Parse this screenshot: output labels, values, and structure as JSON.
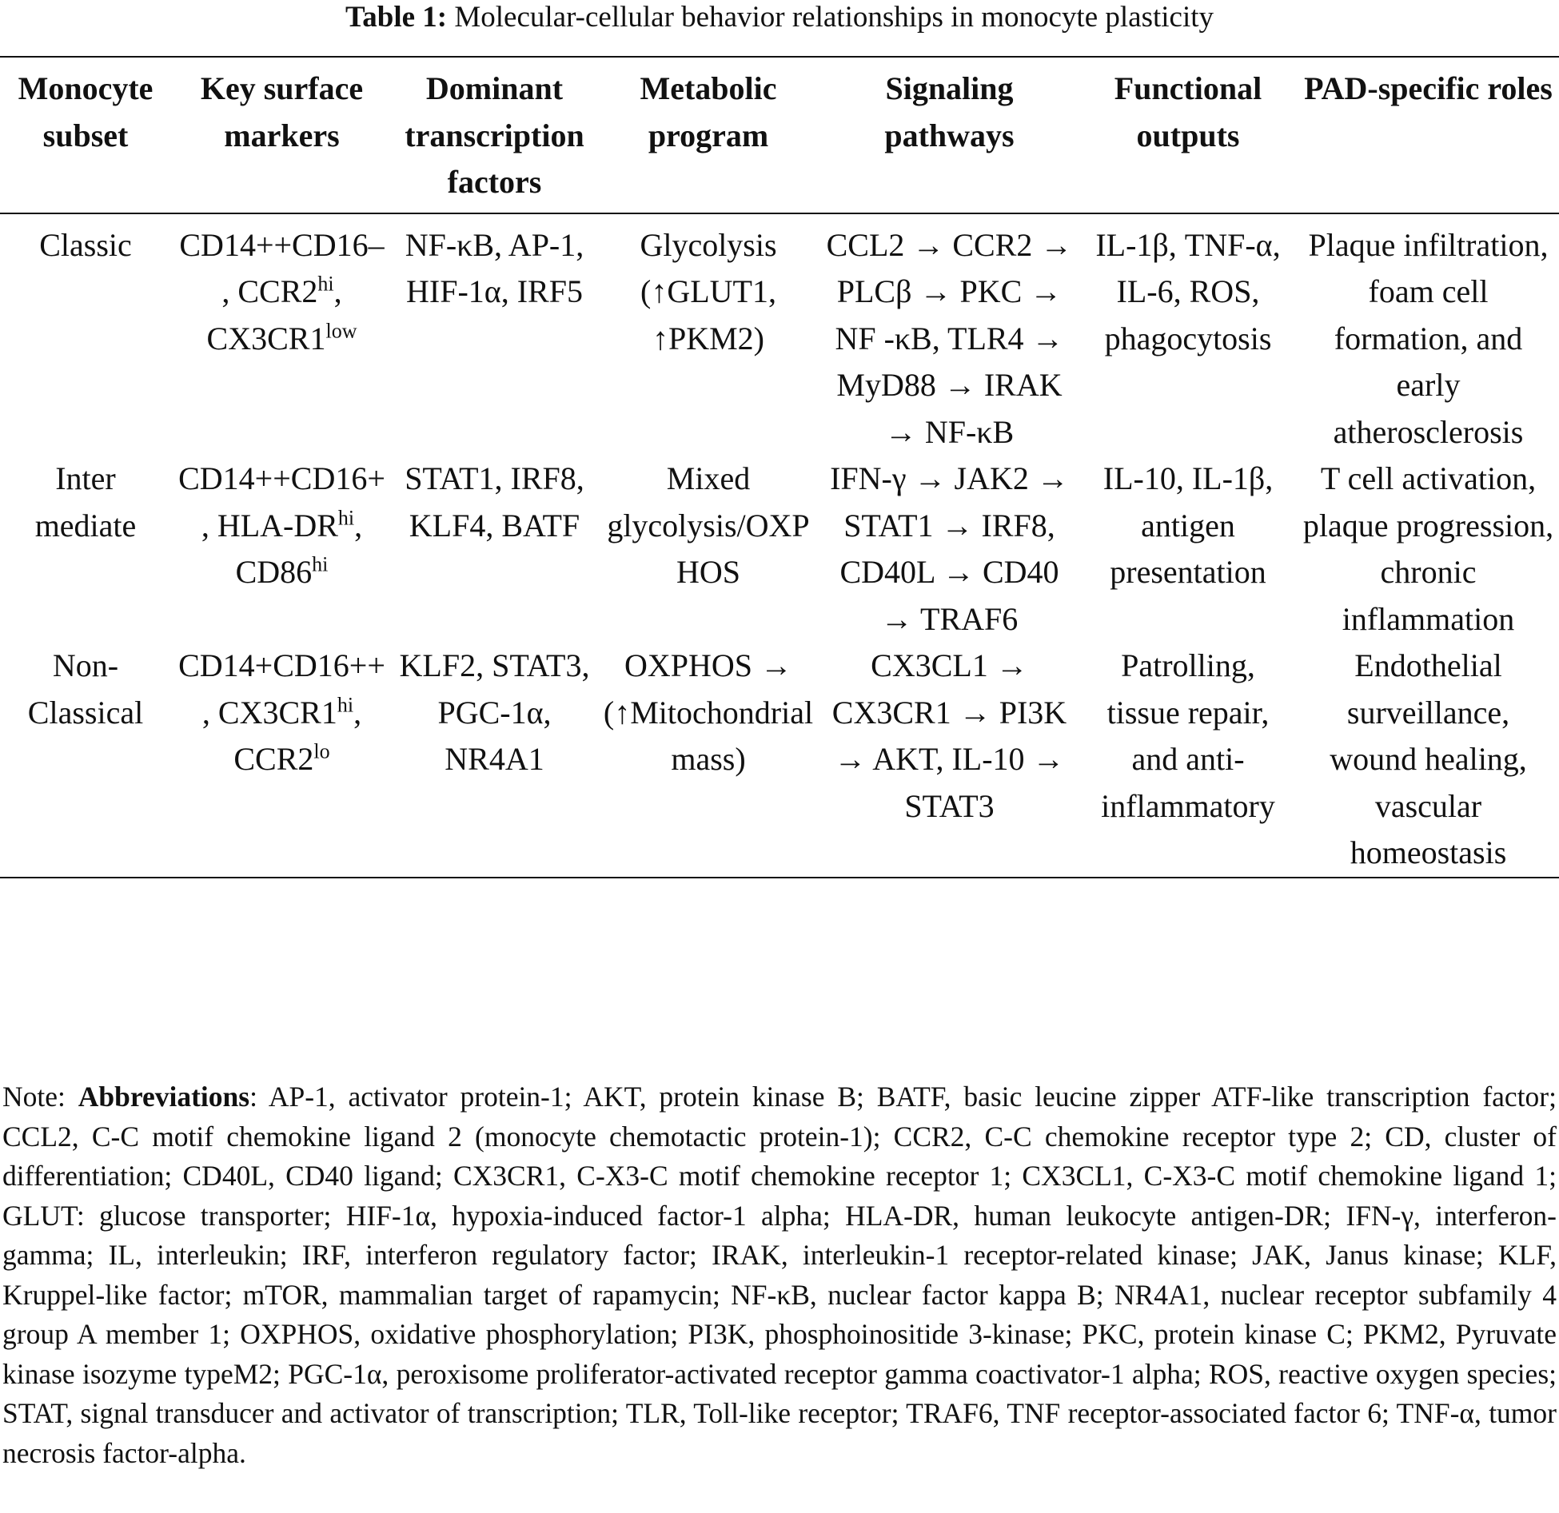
{
  "header": {
    "caption_label": "Table 1:",
    "caption_text": "Molecular-cellular behavior relationships in monocyte plasticity"
  },
  "table": {
    "columns": [
      "Monocyte subset",
      "Key surface markers",
      "Dominant transcription factors",
      "Metabolic program",
      "Signaling pathways",
      "Functional outputs",
      "PAD-specific roles"
    ],
    "rows": [
      [
        "Classic",
        [
          "CD14++CD16–, CCR2",
          {
            "sup": "hi"
          },
          ", CX3CR1",
          {
            "sup": "low"
          }
        ],
        "NF-κB, AP-1, HIF-1α, IRF5",
        "Glycolysis (↑GLUT1, ↑PKM2)",
        "CCL2 → CCR2 → PLCβ → PKC → NF -κB, TLR4 → MyD88 → IRAK → NF-κB",
        "IL-1β, TNF-α, IL-6, ROS, phagocytosis",
        "Plaque infiltration, foam cell formation, and early atherosclerosis"
      ],
      [
        "Inter mediate",
        [
          "CD14++CD16+, HLA-DR",
          {
            "sup": "hi"
          },
          ", CD86",
          {
            "sup": "hi"
          }
        ],
        "STAT1, IRF8, KLF4, BATF",
        "Mixed glycolysis/OXPHOS",
        "IFN-γ → JAK2 → STAT1 → IRF8, CD40L → CD40 → TRAF6",
        "IL-10, IL-1β, antigen presentation",
        "T cell activation, plaque progression, chronic inflammation"
      ],
      [
        "Non-Classical",
        [
          "CD14+CD16++, CX3CR1",
          {
            "sup": "hi"
          },
          ", CCR2",
          {
            "sup": "lo"
          }
        ],
        "KLF2, STAT3, PGC-1α, NR4A1",
        "OXPHOS → (↑Mitochondrial mass)",
        "CX3CL1 → CX3CR1 → PI3K → AKT, IL-10 → STAT3",
        "Patrolling, tissue repair, and anti-inflammatory",
        "Endothelial surveillance, wound healing, vascular homeostasis"
      ]
    ]
  },
  "note": {
    "prefix": "Note:",
    "bold": "Abbreviations",
    "text": ": AP-1, activator protein-1; AKT, protein kinase B; BATF, basic leucine zipper ATF-like transcription factor; CCL2, C-C motif chemokine ligand 2 (monocyte chemotactic protein-1); CCR2, C-C chemokine receptor type 2; CD, cluster of differentiation; CD40L, CD40 ligand; CX3CR1, C-X3-C motif chemokine receptor 1; CX3CL1, C-X3-C motif chemokine ligand 1; GLUT: glucose transporter; HIF-1α, hypoxia-induced factor-1 alpha; HLA-DR, human leukocyte antigen-DR; IFN-γ, interferon-gamma; IL, interleukin; IRF, interferon regulatory factor; IRAK, interleukin-1 receptor-related kinase; JAK, Janus kinase; KLF, Kruppel-like factor; mTOR, mammalian target of rapamycin; NF-κB, nuclear factor kappa B; NR4A1, nuclear receptor subfamily 4 group A member 1; OXPHOS, oxidative phosphorylation; PI3K, phosphoinositide 3-kinase; PKC, protein kinase C; PKM2, Pyruvate kinase isozyme typeM2; PGC-1α, peroxisome proliferator-activated receptor gamma coactivator-1 alpha; ROS, reactive oxygen species; STAT, signal transducer and activator of transcription; TLR, Toll-like receptor; TRAF6, TNF receptor-associated factor 6; TNF-α, tumor necrosis factor-alpha."
  }
}
